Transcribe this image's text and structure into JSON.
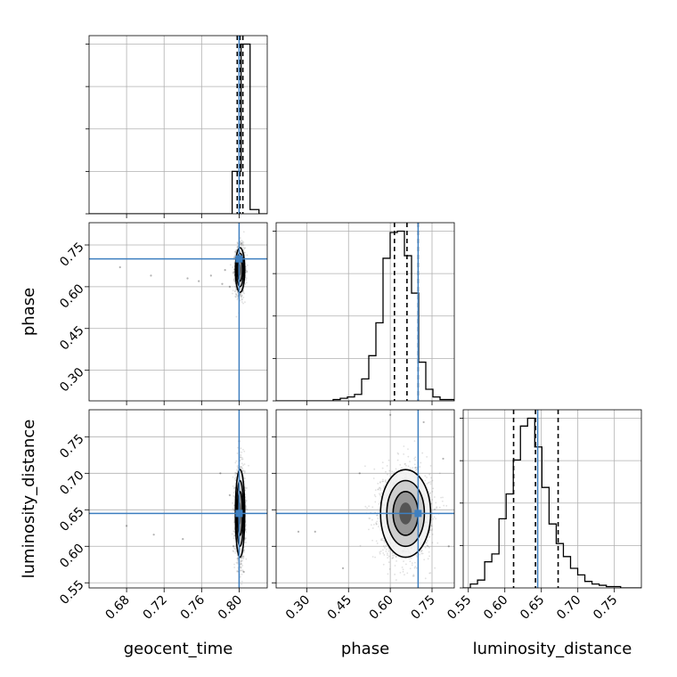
{
  "chart_data": {
    "type": "corner",
    "parameters": [
      "geocent_time",
      "phase",
      "luminosity_distance"
    ],
    "truth_color": "#3e7fc0",
    "truths": {
      "geocent_time": 0.8,
      "phase": 0.7,
      "luminosity_distance": 0.645
    },
    "ranges": {
      "geocent_time": [
        0.64,
        0.83
      ],
      "phase": [
        0.19,
        0.83
      ],
      "luminosity_distance": [
        0.543,
        0.787
      ]
    },
    "ticks": {
      "geocent_time": {
        "values": [
          0.68,
          0.72,
          0.76,
          0.8
        ],
        "labels": [
          "0.68",
          "0.72",
          "0.76",
          "0.80"
        ]
      },
      "phase": {
        "values": [
          0.3,
          0.45,
          0.6,
          0.75
        ],
        "labels": [
          "0.30",
          "0.45",
          "0.60",
          "0.75"
        ]
      },
      "luminosity_distance": {
        "values": [
          0.55,
          0.6,
          0.65,
          0.7,
          0.75
        ],
        "labels": [
          "0.55",
          "0.60",
          "0.65",
          "0.70",
          "0.75"
        ]
      }
    },
    "quantiles": {
      "geocent_time": [
        0.798,
        0.801,
        0.804
      ],
      "phase": [
        0.615,
        0.66,
        0.7
      ],
      "luminosity_distance": [
        0.612,
        0.642,
        0.673
      ]
    },
    "marginals": [
      {
        "parameter": "geocent_time",
        "edges": [
          0.64,
          0.7926,
          0.8021,
          0.8117,
          0.8212,
          0.83
        ],
        "counts": [
          0,
          1.0,
          4.0,
          0.1,
          0
        ]
      },
      {
        "parameter": "phase",
        "edges": [
          0.19,
          0.2156,
          0.2412,
          0.2668,
          0.2924,
          0.318,
          0.3436,
          0.3692,
          0.3948,
          0.4204,
          0.446,
          0.4716,
          0.4972,
          0.5228,
          0.5484,
          0.574,
          0.5996,
          0.6252,
          0.6508,
          0.6764,
          0.702,
          0.7276,
          0.7532,
          0.7788,
          0.8044,
          0.83
        ],
        "counts": [
          0,
          0,
          0,
          0,
          0,
          0,
          0,
          0,
          2,
          4,
          6,
          10,
          34,
          70,
          121,
          221,
          261,
          263,
          225,
          167,
          60,
          18,
          6,
          2,
          2
        ]
      },
      {
        "parameter": "luminosity_distance",
        "edges": [
          0.543,
          0.5528,
          0.5626,
          0.5724,
          0.5822,
          0.592,
          0.6018,
          0.6116,
          0.6214,
          0.6312,
          0.641,
          0.6508,
          0.6606,
          0.6704,
          0.6802,
          0.69,
          0.6998,
          0.7096,
          0.7194,
          0.7292,
          0.739,
          0.7488,
          0.7586,
          0.7684,
          0.7782,
          0.787
        ],
        "counts": [
          0,
          3,
          6,
          20,
          26,
          53,
          72,
          98,
          124,
          130,
          108,
          77,
          49,
          34,
          24,
          15,
          10,
          5,
          3,
          2,
          1,
          1,
          0,
          0,
          0
        ]
      }
    ],
    "joint": [
      {
        "x": "geocent_time",
        "y": "phase",
        "mean": [
          0.801,
          0.66
        ],
        "std": [
          0.0025,
          0.04
        ],
        "rho": 0.0,
        "outliers": [
          [
            0.673,
            0.67
          ],
          [
            0.706,
            0.64
          ],
          [
            0.745,
            0.63
          ],
          [
            0.757,
            0.62
          ],
          [
            0.77,
            0.64
          ],
          [
            0.782,
            0.61
          ],
          [
            0.79,
            0.6
          ],
          [
            0.785,
            0.66
          ]
        ]
      },
      {
        "x": "geocent_time",
        "y": "luminosity_distance",
        "mean": [
          0.801,
          0.645
        ],
        "std": [
          0.0025,
          0.03
        ],
        "rho": 0.0,
        "outliers": [
          [
            0.68,
            0.628
          ],
          [
            0.709,
            0.616
          ],
          [
            0.74,
            0.61
          ],
          [
            0.78,
            0.7
          ],
          [
            0.794,
            0.6
          ],
          [
            0.79,
            0.67
          ],
          [
            0.8,
            0.744
          ],
          [
            0.805,
            0.565
          ]
        ]
      },
      {
        "x": "phase",
        "y": "luminosity_distance",
        "mean": [
          0.655,
          0.645
        ],
        "std": [
          0.045,
          0.03
        ],
        "rho": 0.0,
        "outliers": [
          [
            0.27,
            0.62
          ],
          [
            0.33,
            0.62
          ],
          [
            0.43,
            0.57
          ],
          [
            0.49,
            0.7
          ],
          [
            0.79,
            0.72
          ],
          [
            0.81,
            0.6
          ],
          [
            0.72,
            0.77
          ],
          [
            0.6,
            0.78
          ]
        ]
      }
    ]
  }
}
